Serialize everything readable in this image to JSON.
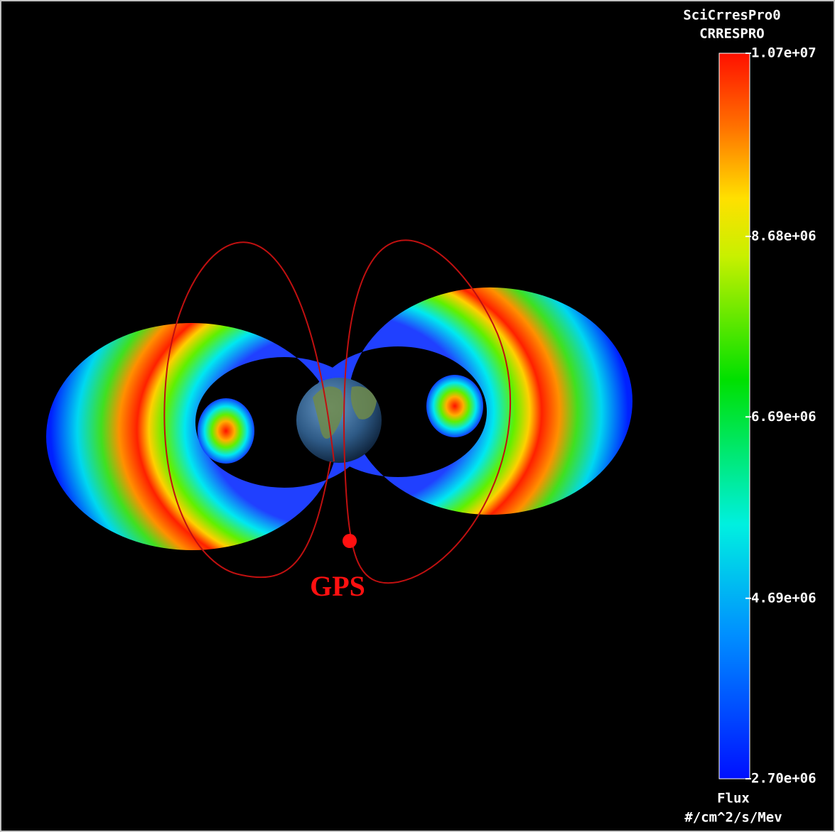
{
  "colorbar": {
    "title": [
      "SciCrresPro0",
      "CRRESPRO"
    ],
    "lim": [
      2700000,
      10700000
    ],
    "ticks": [
      {
        "value": 10700000,
        "label": "1.07e+07"
      },
      {
        "value": 8680000,
        "label": "8.68e+06"
      },
      {
        "value": 6690000,
        "label": "6.69e+06"
      },
      {
        "value": 4690000,
        "label": "4.69e+06"
      },
      {
        "value": 2700000,
        "label": "2.70e+06"
      }
    ],
    "label": "Flux",
    "unit": "#/cm^2/s/Mev"
  },
  "annotation": {
    "label": "GPS"
  }
}
